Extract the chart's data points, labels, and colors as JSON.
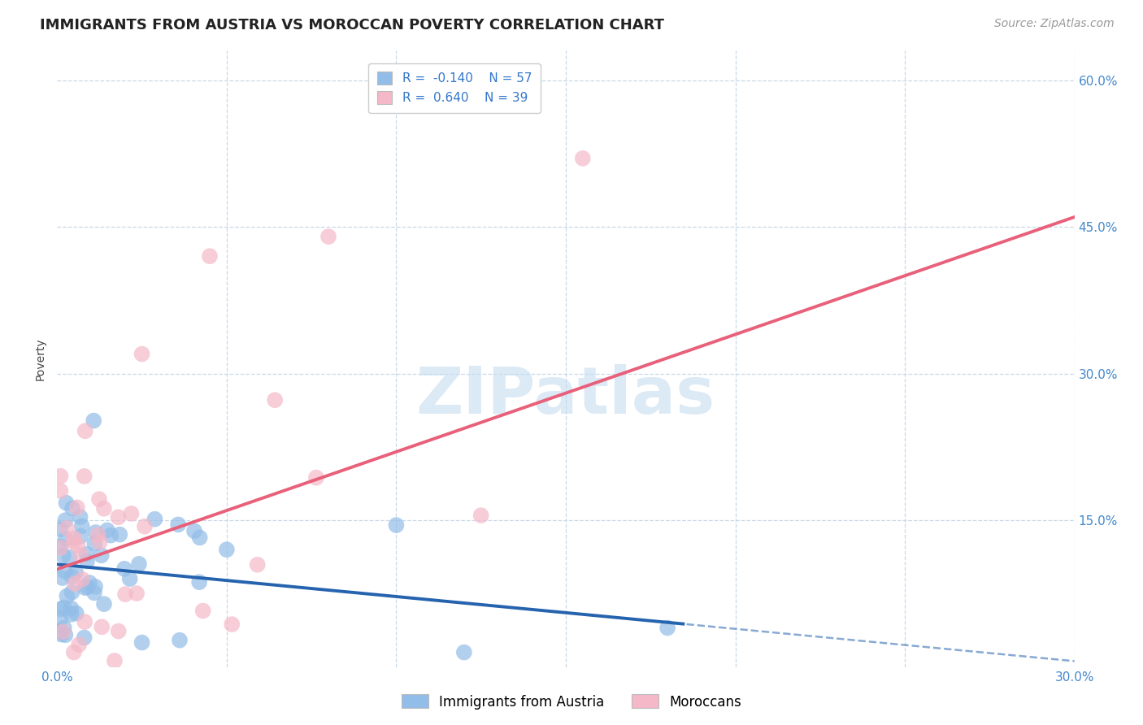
{
  "title": "IMMIGRANTS FROM AUSTRIA VS MOROCCAN POVERTY CORRELATION CHART",
  "source": "Source: ZipAtlas.com",
  "ylabel": "Poverty",
  "xlim": [
    0.0,
    0.3
  ],
  "ylim": [
    0.0,
    0.63
  ],
  "yticks": [
    0.15,
    0.3,
    0.45,
    0.6
  ],
  "ytick_labels": [
    "15.0%",
    "30.0%",
    "45.0%",
    "60.0%"
  ],
  "xtick_vals": [
    0.0,
    0.05,
    0.1,
    0.15,
    0.2,
    0.25,
    0.3
  ],
  "xtick_labels": [
    "0.0%",
    "",
    "",
    "",
    "",
    "",
    "30.0%"
  ],
  "watermark": "ZIPatlas",
  "blue_R": -0.14,
  "blue_N": 57,
  "pink_R": 0.64,
  "pink_N": 39,
  "blue_color": "#92BDE8",
  "pink_color": "#F4B8C8",
  "blue_line_color": "#2563AE",
  "pink_line_color": "#E8607A",
  "blue_line_solid_end": 0.185,
  "pink_line_end": 0.3,
  "blue_intercept": 0.105,
  "blue_slope": -0.33,
  "pink_intercept": 0.1,
  "pink_slope": 1.2,
  "legend_label_blue": "Immigrants from Austria",
  "legend_label_pink": "Moroccans",
  "title_fontsize": 13,
  "axis_label_fontsize": 10,
  "tick_fontsize": 11,
  "legend_fontsize": 11,
  "source_fontsize": 10
}
